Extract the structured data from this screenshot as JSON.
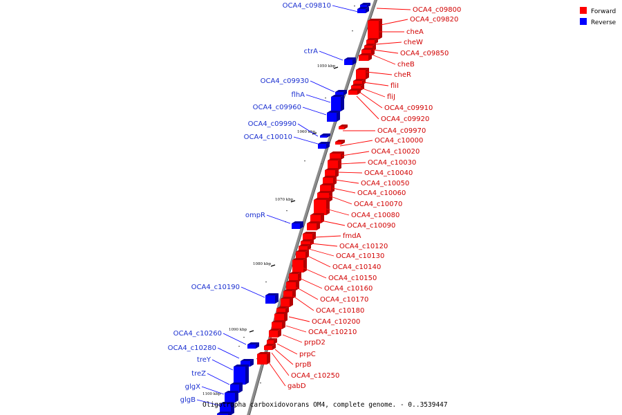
{
  "legend": {
    "items": [
      {
        "label": "Forward",
        "color": "#ff0000"
      },
      {
        "label": "Reverse",
        "color": "#0000ff"
      }
    ]
  },
  "caption": "Oligotropha carboxidovorans OM4, complete genome. - 0..3539447",
  "colors": {
    "forward": "#ff0000",
    "forward_side": "#b30000",
    "reverse": "#0000ff",
    "reverse_side": "#00009c",
    "axis": "#8c8c8c"
  },
  "ticks": [
    "1050 kbp",
    "1060 kbp",
    "1070 kbp",
    "1080 kbp",
    "1090 kbp",
    "1100 kbp"
  ],
  "forward_genes": [
    "OCA4_c09800",
    "OCA4_c09820",
    "cheA",
    "cheW",
    "OCA4_c09850",
    "cheB",
    "cheR",
    "fliI",
    "fliJ",
    "OCA4_c09910",
    "OCA4_c09920",
    "OCA4_c09970",
    "OCA4_c10000",
    "OCA4_c10020",
    "OCA4_c10030",
    "OCA4_c10040",
    "OCA4_c10050",
    "OCA4_c10060",
    "OCA4_c10070",
    "OCA4_c10080",
    "OCA4_c10090",
    "fmdA",
    "OCA4_c10120",
    "OCA4_c10130",
    "OCA4_c10140",
    "OCA4_c10150",
    "OCA4_c10160",
    "OCA4_c10170",
    "OCA4_c10180",
    "OCA4_c10200",
    "OCA4_c10210",
    "prpD2",
    "prpC",
    "prpB",
    "OCA4_c10250",
    "gabD"
  ],
  "reverse_genes": [
    "OCA4_c09810",
    "ctrA",
    "OCA4_c09930",
    "flhA",
    "OCA4_c09960",
    "OCA4_c09990",
    "OCA4_c10010",
    "ompR",
    "OCA4_c10190",
    "OCA4_c10260",
    "OCA4_c10280",
    "treY",
    "treZ",
    "glgX",
    "glgB"
  ]
}
